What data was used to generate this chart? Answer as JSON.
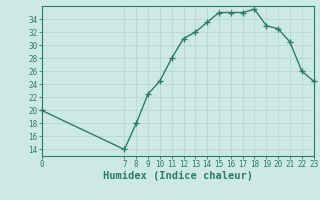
{
  "x": [
    0,
    7,
    8,
    9,
    10,
    11,
    12,
    13,
    14,
    15,
    16,
    17,
    18,
    19,
    20,
    21,
    22,
    23
  ],
  "y": [
    20,
    14,
    18,
    22.5,
    24.5,
    28,
    31,
    32,
    33.5,
    35,
    35,
    35,
    35.5,
    33,
    32.5,
    30.5,
    26,
    24.5
  ],
  "line_color": "#2d7a68",
  "marker": "+",
  "bg_color": "#cde9e5",
  "grid_color": "#b8d8d4",
  "xlabel": "Humidex (Indice chaleur)",
  "xlim": [
    0,
    23
  ],
  "ylim": [
    13,
    36
  ],
  "yticks": [
    14,
    16,
    18,
    20,
    22,
    24,
    26,
    28,
    30,
    32,
    34
  ],
  "xticks": [
    0,
    7,
    8,
    9,
    10,
    11,
    12,
    13,
    14,
    15,
    16,
    17,
    18,
    19,
    20,
    21,
    22,
    23
  ],
  "tick_fontsize": 5.5,
  "xlabel_fontsize": 7.5,
  "line_width": 1.0,
  "marker_size": 4
}
